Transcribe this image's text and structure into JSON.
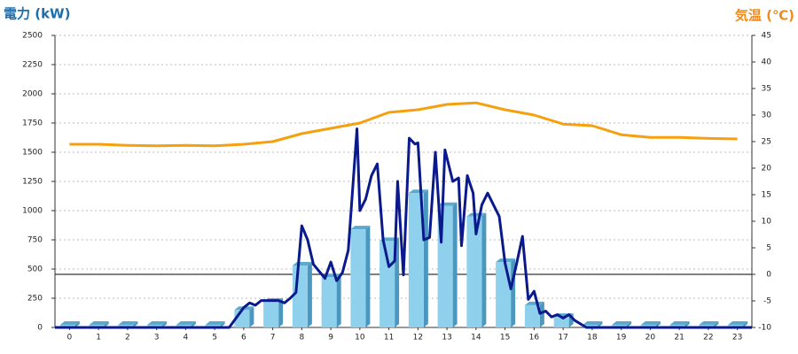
{
  "chart_data": {
    "type": "combo",
    "title_left": "電力 (kW)",
    "title_right": "気温 (℃)",
    "title_left_color": "#1a6fb0",
    "title_right_color": "#f08a1c",
    "x": [
      0,
      1,
      2,
      3,
      4,
      5,
      6,
      7,
      8,
      9,
      10,
      11,
      12,
      13,
      14,
      15,
      16,
      17,
      18,
      19,
      20,
      21,
      22,
      23
    ],
    "xlim": [
      -0.5,
      23.5
    ],
    "xticks": [
      0,
      1,
      2,
      3,
      4,
      5,
      6,
      7,
      8,
      9,
      10,
      11,
      12,
      13,
      14,
      15,
      16,
      17,
      18,
      19,
      20,
      21,
      22,
      23
    ],
    "ylim": [
      0,
      2500
    ],
    "yticks": [
      0,
      250,
      500,
      750,
      1000,
      1250,
      1500,
      1750,
      2000,
      2250,
      2500
    ],
    "y2lim": [
      -10,
      45
    ],
    "y2ticks": [
      -10,
      -5,
      0,
      5,
      10,
      15,
      20,
      25,
      30,
      35,
      40,
      45
    ],
    "y2_baseline": 0,
    "grid": true,
    "series": [
      {
        "type": "bar",
        "color": "#8fd0ec",
        "axis": "y",
        "values": [
          0,
          0,
          0,
          0,
          0,
          0,
          150,
          220,
          530,
          430,
          840,
          740,
          1150,
          1040,
          950,
          560,
          190,
          90,
          0,
          0,
          0,
          0,
          0,
          0
        ]
      },
      {
        "type": "line",
        "color": "#0a1a8c",
        "axis": "y",
        "x": [
          -0.5,
          0,
          1,
          2,
          3,
          4,
          5,
          5.5,
          6,
          6.2,
          6.4,
          6.6,
          7,
          7.2,
          7.4,
          7.6,
          7.8,
          8,
          8.2,
          8.4,
          8.6,
          8.8,
          9,
          9.2,
          9.4,
          9.6,
          9.9,
          10,
          10.2,
          10.4,
          10.6,
          10.8,
          11,
          11.2,
          11.3,
          11.5,
          11.7,
          11.9,
          12,
          12.2,
          12.4,
          12.6,
          12.8,
          12.93,
          13.2,
          13.4,
          13.5,
          13.7,
          13.9,
          14,
          14.2,
          14.4,
          14.6,
          14.8,
          15,
          15.2,
          15.4,
          15.6,
          15.8,
          16,
          16.2,
          16.4,
          16.6,
          16.8,
          17,
          17.2,
          17.4,
          17.8,
          23.5
        ],
        "values": [
          0,
          0,
          0,
          0,
          0,
          0,
          0,
          0,
          170,
          210,
          190,
          230,
          230,
          230,
          210,
          250,
          300,
          870,
          750,
          540,
          480,
          420,
          560,
          400,
          470,
          660,
          1700,
          1000,
          1100,
          1300,
          1400,
          750,
          520,
          570,
          1250,
          450,
          1620,
          1570,
          1580,
          750,
          770,
          1500,
          730,
          1520,
          1250,
          1280,
          700,
          1300,
          1150,
          800,
          1050,
          1150,
          1050,
          950,
          550,
          330,
          550,
          780,
          240,
          310,
          120,
          140,
          90,
          110,
          80,
          110,
          60,
          0,
          0
        ]
      },
      {
        "type": "line",
        "color": "#f5a00f",
        "axis": "y2",
        "values": [
          24.5,
          24.5,
          24.3,
          24.2,
          24.3,
          24.2,
          24.5,
          25,
          26.5,
          27.5,
          28.5,
          30.5,
          31,
          32,
          32.3,
          31,
          30,
          28.3,
          28,
          26.3,
          25.8,
          25.8,
          25.6,
          25.5
        ]
      }
    ]
  }
}
